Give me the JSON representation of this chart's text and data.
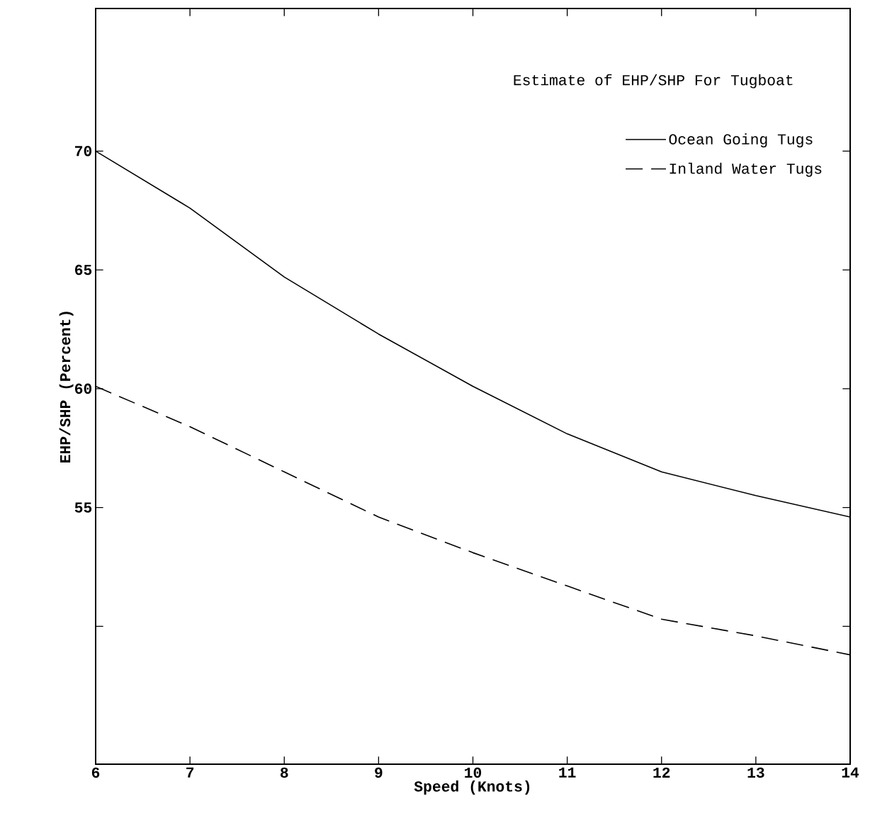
{
  "chart_data": {
    "type": "line",
    "title": "Estimate of EHP/SHP For Tugboat",
    "xlabel": "Speed (Knots)",
    "ylabel": "EHP/SHP (Percent)",
    "x": [
      6,
      7,
      8,
      9,
      10,
      11,
      12,
      13,
      14
    ],
    "series": [
      {
        "name": "Ocean Going Tugs",
        "color": "#000000",
        "line_style": "solid",
        "values": [
          70,
          67.6,
          64.7,
          62.3,
          60.1,
          58.1,
          56.5,
          55.5,
          54.6
        ]
      },
      {
        "name": "Inland Water Tugs",
        "color": "#000000",
        "line_style": "dashed",
        "values": [
          60.1,
          58.4,
          56.5,
          54.6,
          53.1,
          51.7,
          50.3,
          49.6,
          48.8
        ]
      }
    ],
    "xlim": [
      6,
      14
    ],
    "xticks": [
      6,
      7,
      8,
      9,
      10,
      11,
      12,
      13,
      14
    ],
    "ylim": [
      44.2,
      76
    ],
    "yticks": [
      {
        "value": 50,
        "label": null
      },
      55,
      60,
      65,
      70
    ],
    "grid": false,
    "legend": "top right",
    "marker": "none"
  }
}
